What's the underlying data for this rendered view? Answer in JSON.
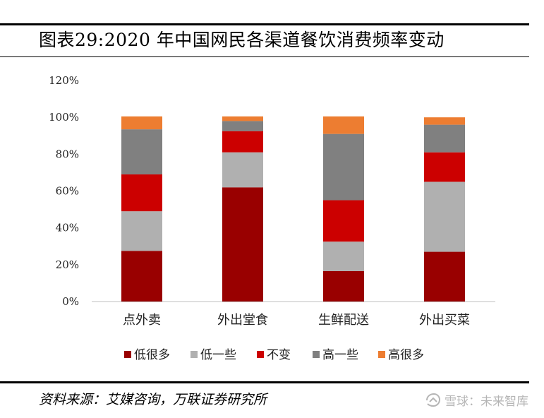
{
  "header": {
    "title": "图表29:2020 年中国网民各渠道餐饮消费频率变动"
  },
  "chart_data": {
    "type": "bar",
    "stacked": true,
    "categories": [
      "点外卖",
      "外出堂食",
      "生鲜配送",
      "外出买菜"
    ],
    "series": [
      {
        "name": "低很多",
        "color": "#990000",
        "values": [
          27.5,
          62,
          16.5,
          27
        ]
      },
      {
        "name": "低一些",
        "color": "#b0b0b0",
        "values": [
          21.5,
          19,
          16,
          38
        ]
      },
      {
        "name": "不变",
        "color": "#cc0000",
        "values": [
          20,
          11.5,
          22.5,
          16
        ]
      },
      {
        "name": "高一些",
        "color": "#808080",
        "values": [
          24.5,
          5.5,
          36,
          15
        ]
      },
      {
        "name": "高很多",
        "color": "#ed7d31",
        "values": [
          7,
          2.5,
          9.5,
          4
        ]
      }
    ],
    "ylim": [
      0,
      120
    ],
    "yticks": [
      "0%",
      "20%",
      "40%",
      "60%",
      "80%",
      "100%",
      "120%"
    ],
    "legend_position": "bottom",
    "grid": false
  },
  "footer": {
    "source": "资料来源：艾媒咨询，万联证券研究所",
    "watermark": "雪球：未来智库"
  }
}
